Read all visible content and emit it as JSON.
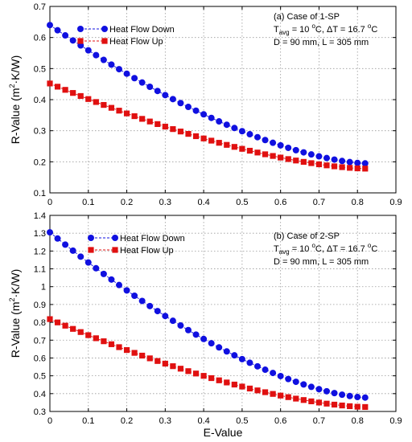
{
  "chart_data": [
    {
      "type": "scatter",
      "xlabel": "",
      "ylabel": "R-Value (m²·K/W)",
      "ylabel_parts": {
        "main": "R-Value (m",
        "sup": "2",
        "rest": "·K/W)"
      },
      "xlim": [
        0,
        0.9
      ],
      "ylim": [
        0.1,
        0.7
      ],
      "xticks": [
        "0",
        "0.1",
        "0.2",
        "0.3",
        "0.4",
        "0.5",
        "0.6",
        "0.7",
        "0.8",
        "0.9"
      ],
      "yticks": [
        "0.1",
        "0.2",
        "0.3",
        "0.4",
        "0.5",
        "0.6",
        "0.7"
      ],
      "grid": true,
      "legend": "top-left",
      "annotations": [
        {
          "parts": [
            {
              "t": "(a) Case of 1-SP"
            }
          ]
        },
        {
          "parts": [
            {
              "t": "T"
            },
            {
              "t": "avg",
              "sub": true
            },
            {
              "t": " = 10 "
            },
            {
              "t": "o",
              "sup": true
            },
            {
              "t": "C, ΔT = 16.7 "
            },
            {
              "t": "o",
              "sup": true
            },
            {
              "t": "C"
            }
          ]
        },
        {
          "parts": [
            {
              "t": "D = 90 mm, L = 305 mm"
            }
          ]
        }
      ],
      "series": [
        {
          "name": "Heat Flow Down",
          "color": "#1010e0",
          "marker": "circle",
          "a": 0.64,
          "b": 0.195
        },
        {
          "name": "Heat Flow Up",
          "color": "#e01010",
          "marker": "square",
          "a": 0.452,
          "b": 0.178
        }
      ]
    },
    {
      "type": "scatter",
      "xlabel": "E-Value",
      "ylabel": "R-Value (m²·K/W)",
      "ylabel_parts": {
        "main": "R-Value (m",
        "sup": "2",
        "rest": "·K/W)"
      },
      "xlim": [
        0,
        0.9
      ],
      "ylim": [
        0.3,
        1.4
      ],
      "xticks": [
        "0",
        "0.1",
        "0.2",
        "0.3",
        "0.4",
        "0.5",
        "0.6",
        "0.7",
        "0.8",
        "0.9"
      ],
      "yticks": [
        "0.3",
        "0.4",
        "0.5",
        "0.6",
        "0.7",
        "0.8",
        "0.9",
        "1",
        "1.1",
        "1.2",
        "1.3",
        "1.4"
      ],
      "grid": true,
      "legend": "top-center",
      "annotations": [
        {
          "parts": [
            {
              "t": "(b) Case of 2-SP"
            }
          ]
        },
        {
          "parts": [
            {
              "t": "T"
            },
            {
              "t": "avg",
              "sub": true
            },
            {
              "t": " = 10 "
            },
            {
              "t": "o",
              "sup": true
            },
            {
              "t": "C, ΔT = 16.7 "
            },
            {
              "t": "o",
              "sup": true
            },
            {
              "t": "C"
            }
          ]
        },
        {
          "parts": [
            {
              "t": "D = 90 mm, L = 305 mm"
            }
          ]
        }
      ],
      "series": [
        {
          "name": "Heat Flow Down",
          "color": "#1010e0",
          "marker": "circle",
          "a": 1.305,
          "b": 0.378
        },
        {
          "name": "Heat Flow Up",
          "color": "#e01010",
          "marker": "square",
          "a": 0.818,
          "b": 0.325
        }
      ]
    }
  ]
}
